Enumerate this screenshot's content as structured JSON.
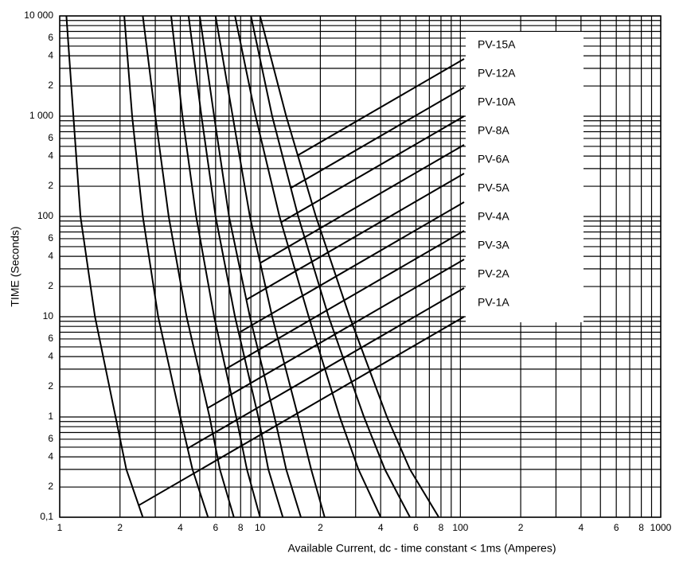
{
  "chart_data": {
    "type": "line",
    "x_label": "Available Current,  dc - time constant < 1ms (Amperes)",
    "y_label": "TIME (Seconds)",
    "xscale": "log",
    "yscale": "log",
    "xlim": [
      1,
      1000
    ],
    "ylim": [
      0.1,
      10000
    ],
    "xticks": [
      1,
      2,
      4,
      6,
      8,
      10,
      {
        "value": 20,
        "label": "2"
      },
      {
        "value": 40,
        "label": "4"
      },
      {
        "value": 60,
        "label": "6"
      },
      {
        "value": 80,
        "label": "8"
      },
      100,
      {
        "value": 200,
        "label": "2"
      },
      {
        "value": 400,
        "label": "4"
      },
      {
        "value": 600,
        "label": "6"
      },
      {
        "value": 800,
        "label": "8"
      },
      1000
    ],
    "yticks": [
      {
        "value": 10000,
        "label": "10 000"
      },
      {
        "value": 6000,
        "label": "6"
      },
      {
        "value": 4000,
        "label": "4"
      },
      {
        "value": 2000,
        "label": "2"
      },
      {
        "value": 1000,
        "label": "1 000"
      },
      {
        "value": 600,
        "label": "6"
      },
      {
        "value": 400,
        "label": "4"
      },
      {
        "value": 200,
        "label": "2"
      },
      100,
      {
        "value": 60,
        "label": "6"
      },
      {
        "value": 40,
        "label": "4"
      },
      {
        "value": 20,
        "label": "2"
      },
      10,
      6,
      4,
      2,
      1,
      {
        "value": 0.6,
        "label": "6"
      },
      {
        "value": 0.4,
        "label": "4"
      },
      {
        "value": 0.2,
        "label": "2"
      },
      {
        "value": 0.1,
        "label": "0,1"
      }
    ],
    "grid": true,
    "minor_grid": true,
    "legend": "upper right",
    "series": [
      {
        "name": "PV-1A",
        "color": "#000000",
        "x": [
          1.08,
          1.17,
          1.27,
          1.5,
          1.9,
          2.15,
          2.6
        ],
        "values": [
          10000,
          1000,
          100,
          10,
          1,
          0.3,
          0.1
        ]
      },
      {
        "name": "PV-2A",
        "color": "#000000",
        "x": [
          2.1,
          2.3,
          2.6,
          3.1,
          4.0,
          4.6,
          5.5
        ],
        "values": [
          10000,
          1000,
          100,
          10,
          1,
          0.3,
          0.1
        ]
      },
      {
        "name": "PV-3A",
        "color": "#000000",
        "x": [
          2.6,
          3.0,
          3.5,
          4.3,
          5.6,
          6.3,
          7.4
        ],
        "values": [
          10000,
          1000,
          100,
          10,
          1,
          0.3,
          0.1
        ]
      },
      {
        "name": "PV-4A",
        "color": "#000000",
        "x": [
          3.6,
          4.1,
          4.8,
          5.9,
          7.6,
          8.6,
          10
        ],
        "values": [
          10000,
          1000,
          100,
          10,
          1,
          0.3,
          0.1
        ]
      },
      {
        "name": "PV-5A",
        "color": "#000000",
        "x": [
          4.4,
          5.1,
          6.0,
          7.5,
          9.8,
          11,
          13
        ],
        "values": [
          10000,
          1000,
          100,
          10,
          1,
          0.3,
          0.1
        ]
      },
      {
        "name": "PV-6A",
        "color": "#000000",
        "x": [
          5.0,
          5.9,
          7.0,
          8.9,
          11.8,
          13.5,
          16
        ],
        "values": [
          10000,
          1000,
          100,
          10,
          1,
          0.3,
          0.1
        ]
      },
      {
        "name": "PV-8A",
        "color": "#000000",
        "x": [
          6.0,
          7.3,
          8.9,
          11.5,
          15.5,
          18,
          21
        ],
        "values": [
          10000,
          1000,
          100,
          10,
          1,
          0.3,
          0.1
        ]
      },
      {
        "name": "PV-10A",
        "color": "#000000",
        "x": [
          7.5,
          9.5,
          12.5,
          17.5,
          25,
          31,
          40
        ],
        "values": [
          10000,
          1000,
          100,
          10,
          1,
          0.3,
          0.1
        ]
      },
      {
        "name": "PV-12A",
        "color": "#000000",
        "x": [
          9,
          11.5,
          15.5,
          22,
          33,
          42,
          56
        ],
        "values": [
          10000,
          1000,
          100,
          10,
          1,
          0.3,
          0.1
        ]
      },
      {
        "name": "PV-15A",
        "color": "#000000",
        "x": [
          10,
          13.5,
          19,
          28,
          43,
          56,
          78
        ],
        "values": [
          10000,
          1000,
          100,
          10,
          1,
          0.3,
          0.1
        ]
      }
    ]
  }
}
